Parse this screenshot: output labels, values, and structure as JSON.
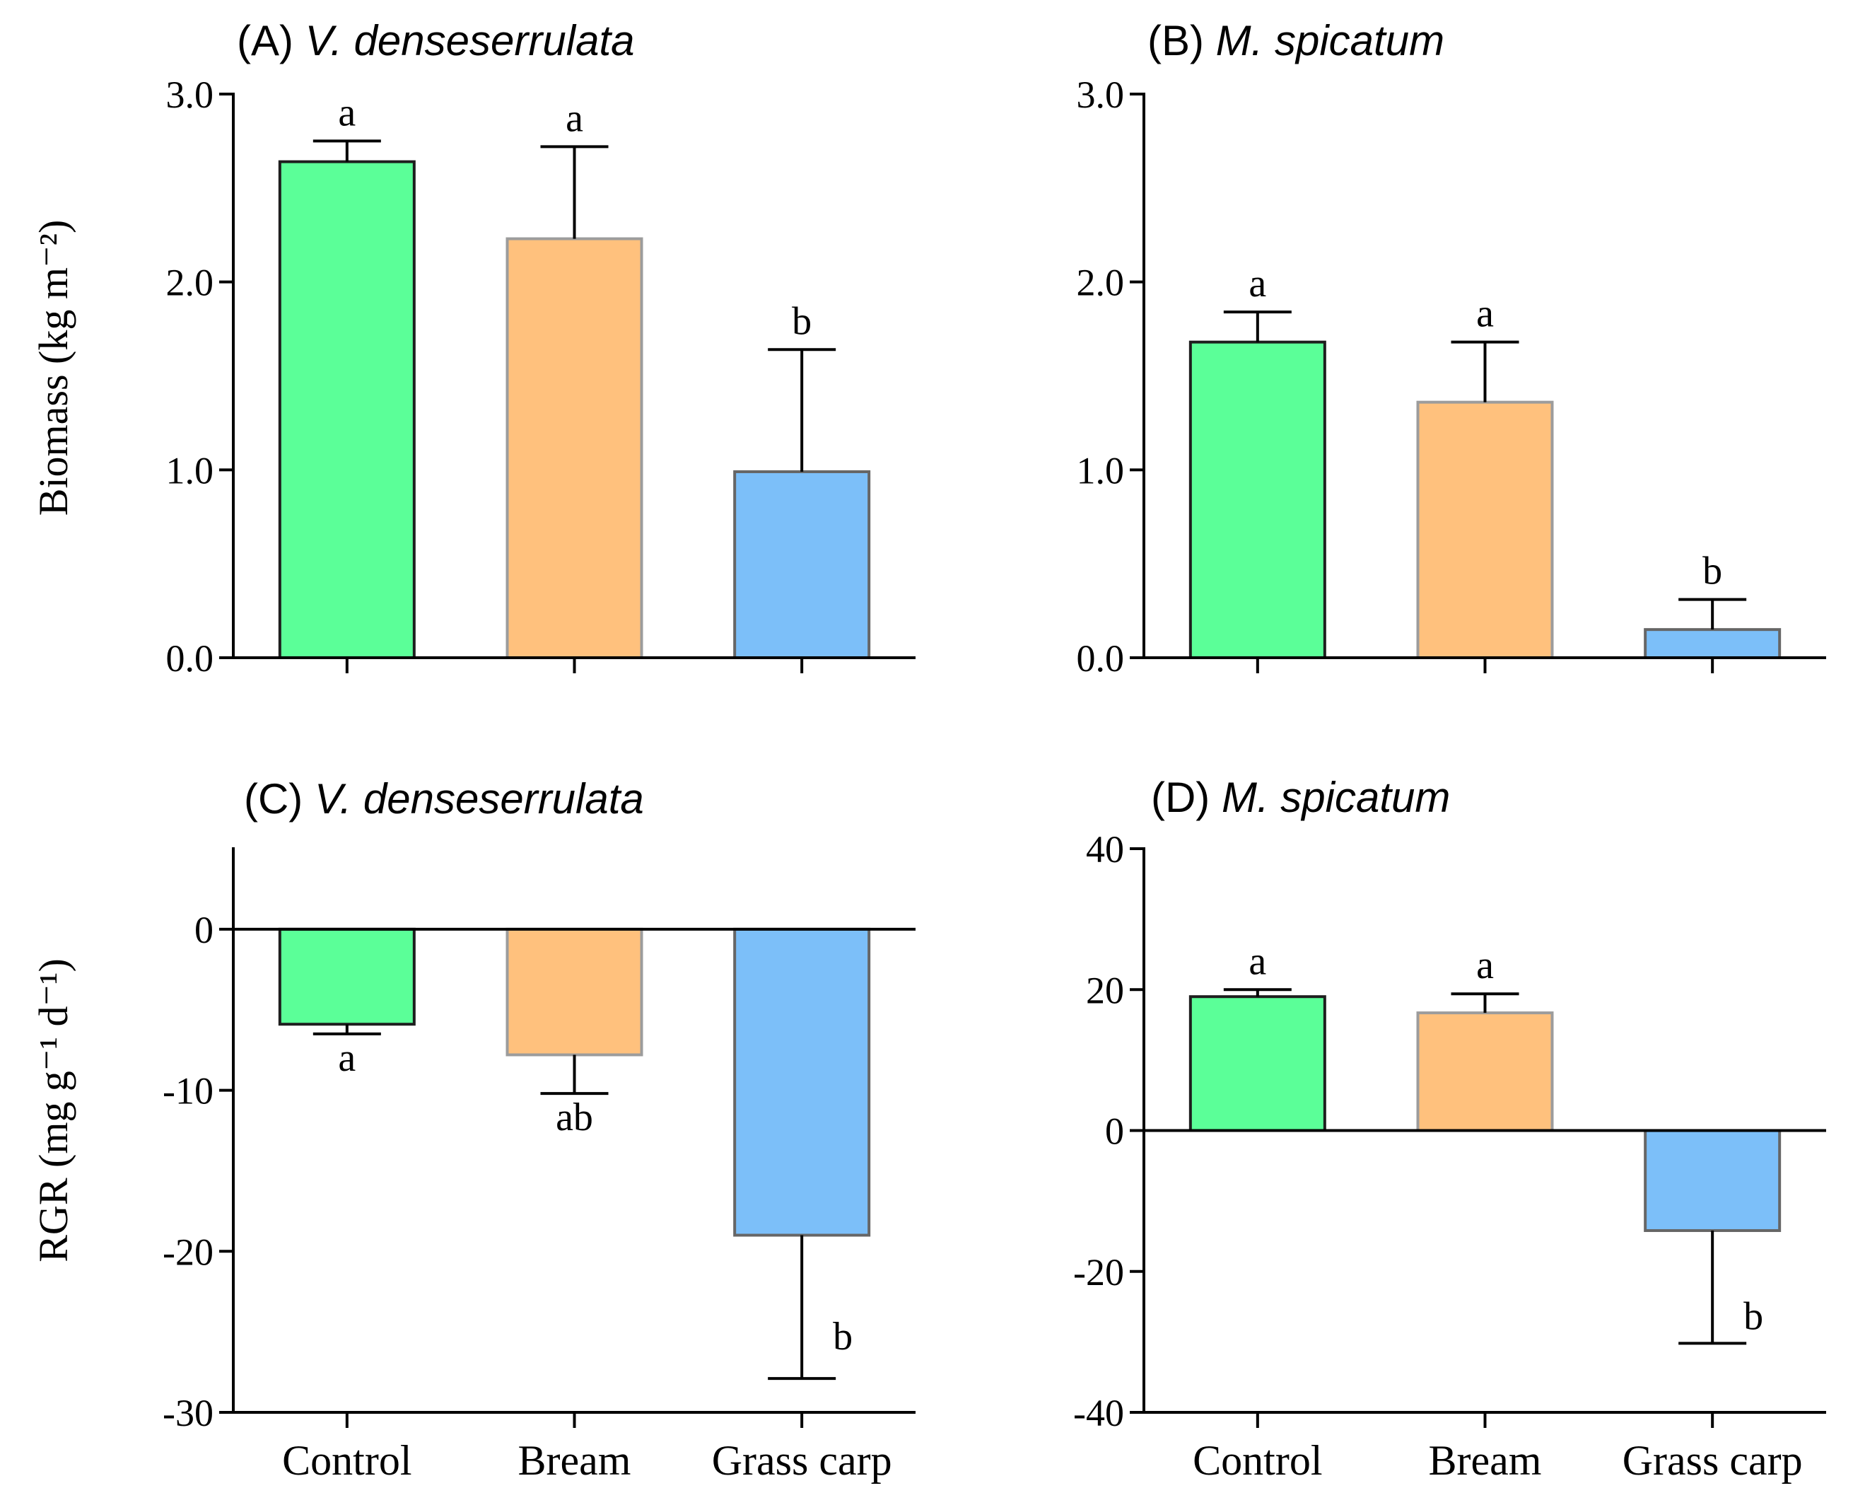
{
  "figure": {
    "ylabel_top": "Biomass (kg m⁻²)",
    "ylabel_bottom": "RGR (mg g⁻¹ d⁻¹)"
  },
  "chart_data": [
    {
      "id": "A",
      "type": "bar",
      "title_prefix": "(A)",
      "title_species": "V. denseserrulata",
      "categories": [
        "Control",
        "Bream",
        "Grass carp"
      ],
      "values": [
        2.64,
        2.23,
        0.99
      ],
      "errors": [
        0.11,
        0.49,
        0.65
      ],
      "significance": [
        "a",
        "a",
        "b"
      ],
      "yticks": [
        0,
        1,
        2,
        3
      ],
      "ytick_labels": [
        "0.0",
        "1.0",
        "2.0",
        "3.0"
      ],
      "ylim": [
        0,
        3
      ],
      "ylabel": "Biomass (kg m⁻²)",
      "show_category_labels": false
    },
    {
      "id": "B",
      "type": "bar",
      "title_prefix": "(B)",
      "title_species": "M. spicatum",
      "categories": [
        "Control",
        "Bream",
        "Grass carp"
      ],
      "values": [
        1.68,
        1.36,
        0.15
      ],
      "errors": [
        0.16,
        0.32,
        0.16
      ],
      "significance": [
        "a",
        "a",
        "b"
      ],
      "yticks": [
        0,
        1,
        2,
        3
      ],
      "ytick_labels": [
        "0.0",
        "1.0",
        "2.0",
        "3.0"
      ],
      "ylim": [
        0,
        3
      ],
      "show_category_labels": false
    },
    {
      "id": "C",
      "type": "bar",
      "title_prefix": "(C)",
      "title_species": "V. denseserrulata",
      "categories": [
        "Control",
        "Bream",
        "Grass carp"
      ],
      "values": [
        -5.9,
        -7.8,
        -19.0
      ],
      "errors": [
        0.6,
        2.4,
        8.9
      ],
      "significance": [
        "a",
        "ab",
        "b"
      ],
      "yticks": [
        0,
        -10,
        -20,
        -30
      ],
      "ytick_labels": [
        "0",
        "-10",
        "-20",
        "-30"
      ],
      "ylim": [
        -30,
        5
      ],
      "ylabel": "RGR (mg g⁻¹ d⁻¹)",
      "show_category_labels": true
    },
    {
      "id": "D",
      "type": "bar",
      "title_prefix": "(D)",
      "title_species": "M. spicatum",
      "categories": [
        "Control",
        "Bream",
        "Grass carp"
      ],
      "values": [
        19.0,
        16.7,
        -14.2
      ],
      "errors": [
        1.0,
        2.7,
        16.0
      ],
      "significance": [
        "a",
        "a",
        "b"
      ],
      "yticks": [
        40,
        20,
        0,
        -20,
        -40
      ],
      "ytick_labels": [
        "40",
        "20",
        "0",
        "-20",
        "-40"
      ],
      "ylim": [
        -40,
        40
      ],
      "show_category_labels": true
    }
  ],
  "colors": {
    "Control": "#5bff98",
    "Bream": "#ffc17d",
    "Grass carp": "#7cbff9",
    "Control_edge": "#1e1e1e",
    "Bream_edge": "#9c9c9c",
    "Grass carp_edge": "#666666"
  }
}
